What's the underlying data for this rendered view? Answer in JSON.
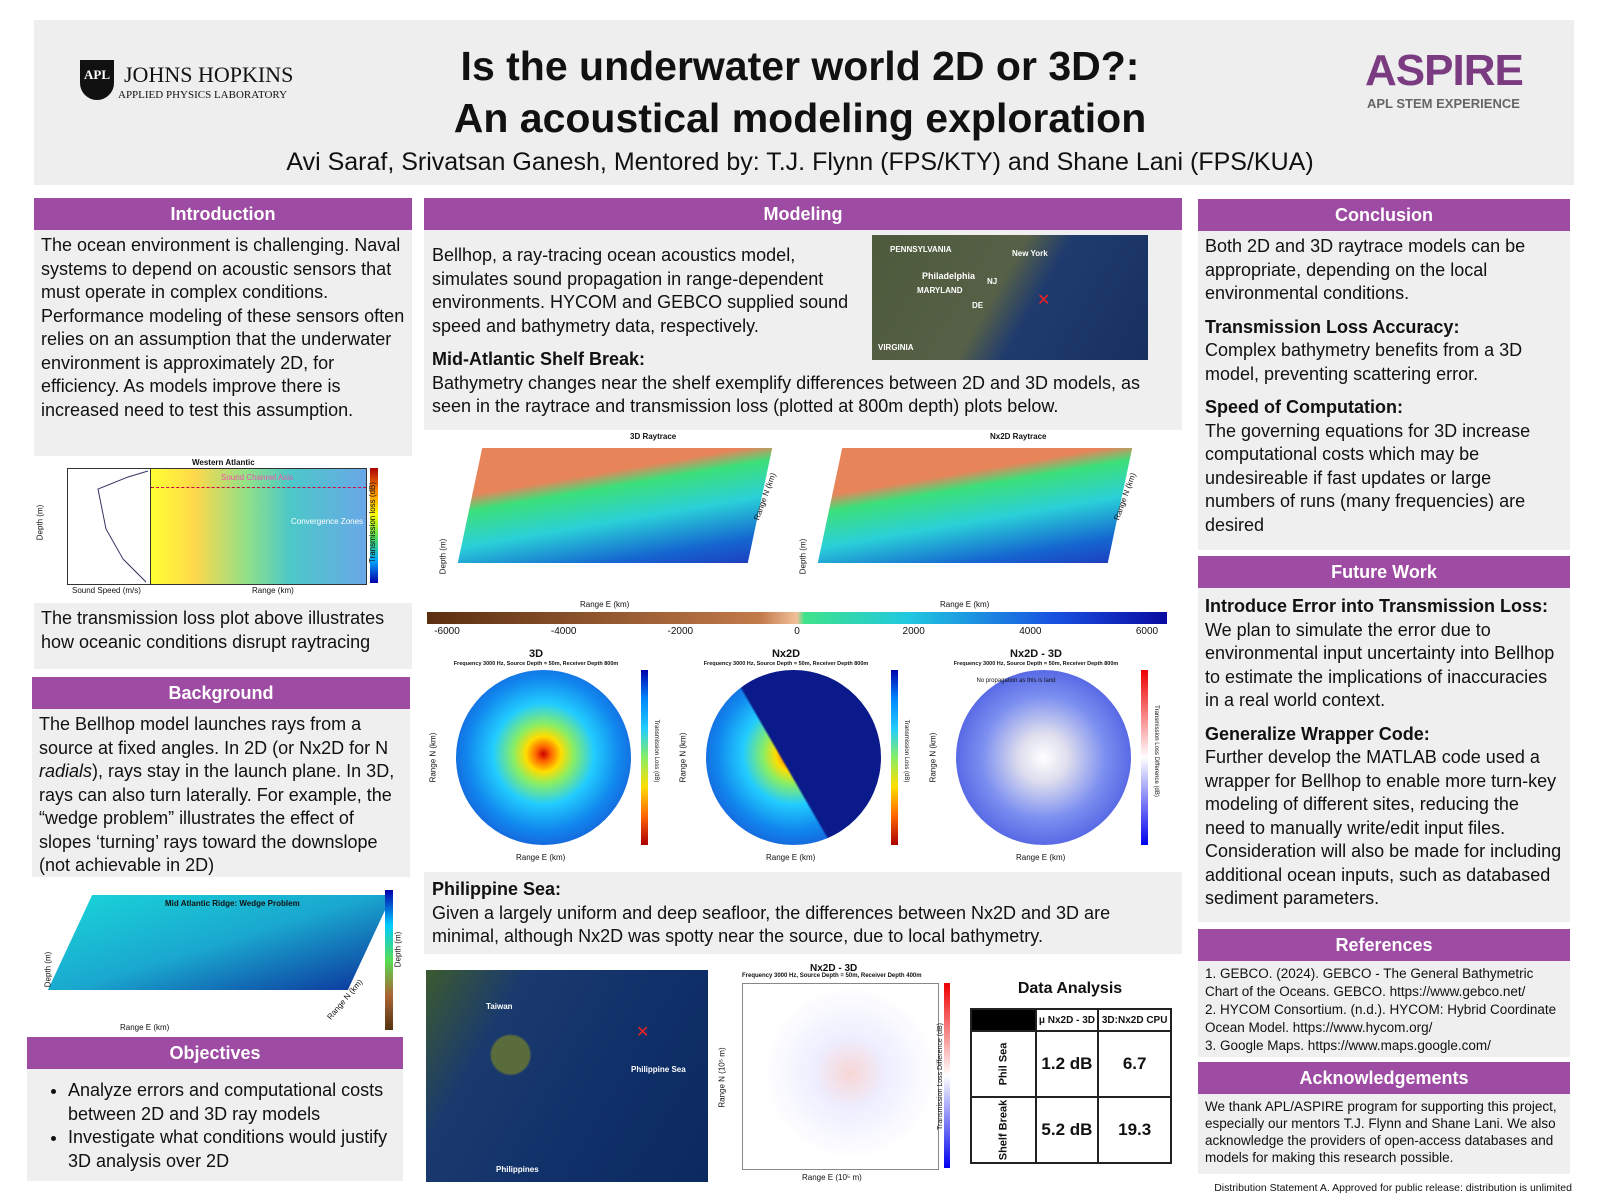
{
  "header": {
    "logo_left": {
      "mark": "APL",
      "name": "JOHNS HOPKINS",
      "subtitle": "APPLIED PHYSICS LABORATORY"
    },
    "title": [
      "Is the underwater world 2D or 3D?:",
      "An acoustical modeling exploration"
    ],
    "authors": "Avi Saraf, Srivatsan Ganesh, Mentored by: T.J. Flynn (FPS/KTY) and Shane Lani (FPS/KUA)",
    "logo_right": {
      "name": "ASPIRE",
      "subtitle": "APL STEM EXPERIENCE"
    }
  },
  "introduction": {
    "heading": "Introduction",
    "text": "The ocean environment is challenging. Naval systems to depend on acoustic sensors that must operate in complex conditions. Performance modeling of these sensors often relies on an assumption that the underwater environment is approximately 2D, for efficiency. As models improve there is increased need to test this assumption.",
    "figure": {
      "title": "Western Atlantic",
      "annotations": [
        "Sound Channel Axis",
        "Convergence Zones"
      ],
      "x_label_left": "Sound Speed (m/s)",
      "x_label_right": "Range (km)",
      "y_label": "Depth (m)",
      "colorbar_label": "Transmission loss (dB)"
    },
    "caption": "The transmission loss plot above illustrates how oceanic conditions disrupt raytracing"
  },
  "background": {
    "heading": "Background",
    "text": [
      "The Bellhop model launches rays from a source at fixed angles. In 2D (or Nx2D for N ",
      "radials",
      "), rays stay in the launch plane. In 3D, rays can also turn laterally. For example, the “wedge problem” illustrates the effect of slopes ‘turning’ rays toward the downslope (not achievable in 2D)"
    ],
    "figure": {
      "title": "Mid Atlantic Ridge: Wedge Problem",
      "x_label": "Range E (km)",
      "y_label": "Range N (km)",
      "z_label": "Depth (m)",
      "colorbar_label": "Depth (m)"
    }
  },
  "objectives": {
    "heading": "Objectives",
    "items": [
      "Analyze errors and computational costs between 2D and 3D ray models",
      "Investigate what conditions would justify 3D analysis over 2D"
    ]
  },
  "modeling": {
    "heading": "Modeling",
    "text": "Bellhop, a ray-tracing ocean acoustics model, simulates sound propagation in range-dependent environments. HYCOM and GEBCO supplied sound speed and bathymetry data, respectively.",
    "map_labels": [
      "PENNSYLVANIA",
      "New York",
      "Philadelphia",
      "NJ",
      "MARYLAND",
      "DE",
      "VIRGINIA"
    ],
    "shelf_heading": "Mid-Atlantic Shelf Break:",
    "shelf_text": "Bathymetry changes near the shelf exemplify differences between 2D and 3D models, as seen in the raytrace and transmission loss (plotted at 800m depth) plots below.",
    "raytrace": {
      "titles": [
        "3D Raytrace",
        "Nx2D Raytrace"
      ],
      "x_label": "Range E (km)",
      "y_label": "Range N (km)",
      "z_label": "Depth (m)"
    },
    "colorbar_ticks": [
      -6000,
      -4000,
      -2000,
      0,
      2000,
      4000,
      6000
    ],
    "polar": {
      "titles": [
        "3D",
        "Nx2D",
        "Nx2D - 3D"
      ],
      "subtitle": "Frequency 3000 Hz, Source Depth = 50m, Receiver Depth 800m",
      "annotation": "No propagation as this is land",
      "x_label": "Range E (km)",
      "y_label": "Range N (km)",
      "colorbar_labels": [
        "Transmission Loss (dB)",
        "Transmission Loss Difference (dB)"
      ]
    },
    "phil_heading": "Philippine Sea:",
    "phil_text": "Given a largely uniform and deep seafloor, the differences between Nx2D and 3D are minimal, although Nx2D was spotty near the source, due to local bathymetry.",
    "phil_map_labels": [
      "Taiwan",
      "Philippine Sea",
      "Philippines"
    ],
    "phil_plot": {
      "title": "Nx2D - 3D",
      "subtitle": "Frequency 3000 Hz, Source Depth = 50m, Receiver Depth 400m",
      "x_label": "Range E (10⁵ m)",
      "y_label": "Range N (10⁵ m)",
      "colorbar_label": "Transmission Loss Difference (dB)"
    },
    "table": {
      "title": "Data Analysis",
      "columns": [
        "μ Nx2D - 3D",
        "3D:Nx2D CPU"
      ],
      "rows": [
        {
          "label": "Phil Sea",
          "values": [
            "1.2 dB",
            "6.7"
          ]
        },
        {
          "label": "Shelf Break",
          "values": [
            "5.2 dB",
            "19.3"
          ]
        }
      ]
    }
  },
  "conclusion": {
    "heading": "Conclusion",
    "text": "Both 2D and 3D raytrace models can be appropriate, depending on the local environmental conditions.",
    "points": [
      {
        "title": "Transmission Loss Accuracy:",
        "text": "Complex bathymetry benefits from a 3D model, preventing scattering error."
      },
      {
        "title": "Speed of Computation:",
        "text": "The governing equations for 3D increase computational costs which may be undesireable if fast updates or large numbers of runs (many frequencies) are desired"
      }
    ]
  },
  "future_work": {
    "heading": "Future Work",
    "points": [
      {
        "title": "Introduce Error into Transmission Loss:",
        "text": "We plan to simulate the error due to environmental input uncertainty into Bellhop to estimate the implications of inaccuracies in a real world context."
      },
      {
        "title": "Generalize Wrapper Code:",
        "text": "Further develop the MATLAB code used a wrapper for Bellhop to enable more turn-key modeling of different sites, reducing the need to manually write/edit input files. Consideration will also be made for including additional ocean inputs, such as databased sediment parameters."
      }
    ]
  },
  "references": {
    "heading": "References",
    "items": [
      "1. GEBCO. (2024). GEBCO - The General Bathymetric Chart of the Oceans. GEBCO. https://www.gebco.net/",
      "2. HYCOM Consortium. (n.d.). HYCOM: Hybrid Coordinate Ocean Model. https://www.hycom.org/",
      "3. Google Maps. https://www.maps.google.com/"
    ]
  },
  "acknowledgements": {
    "heading": "Acknowledgements",
    "text": "We thank APL/ASPIRE program for supporting this project, especially our mentors T.J. Flynn and Shane Lani. We also acknowledge the providers of open-access databases and models for making this research possible."
  },
  "footer": "Distribution Statement A. Approved for public release: distribution is unlimited"
}
